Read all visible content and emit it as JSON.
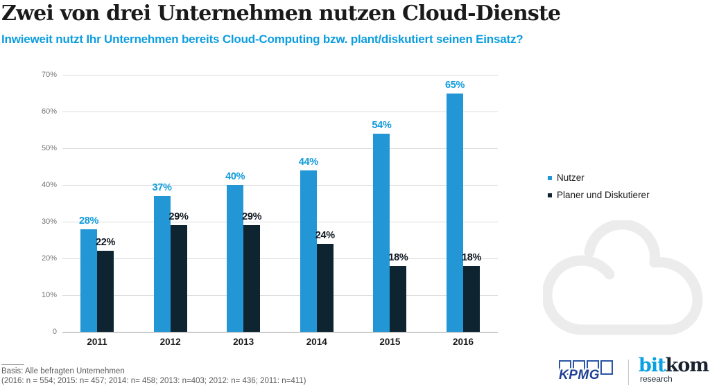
{
  "header": {
    "title": "Zwei von drei Unternehmen nutzen Cloud-Dienste",
    "subtitle": "Inwieweit nutzt Ihr Unternehmen bereits Cloud-Computing bzw. plant/diskutiert seinen Einsatz?"
  },
  "chart_data": {
    "type": "bar",
    "categories": [
      "2011",
      "2012",
      "2013",
      "2014",
      "2015",
      "2016"
    ],
    "series": [
      {
        "name": "Nutzer",
        "color": "#2397d6",
        "label_color": "#0f9bdb",
        "values": [
          28,
          37,
          40,
          44,
          54,
          65
        ]
      },
      {
        "name": "Planer und Diskutierer",
        "color": "#0e2430",
        "label_color": "#101820",
        "values": [
          22,
          29,
          29,
          24,
          18,
          18
        ]
      }
    ],
    "value_suffix": "%",
    "ylim": [
      0,
      70
    ],
    "yticks": [
      0,
      10,
      20,
      30,
      40,
      50,
      60,
      70
    ],
    "ytick_labels": [
      "0",
      "10%",
      "20%",
      "30%",
      "40%",
      "50%",
      "60%",
      "70%"
    ],
    "grid": true,
    "legend_position": "right",
    "xlabel": "",
    "ylabel": ""
  },
  "footer": {
    "basis_line1": "Basis: Alle befragten Unternehmen",
    "basis_line2": "(2016: n = 554; 2015: n= 457; 2014: n= 458; 2013: n=403; 2012: n= 436; 2011: n=411)"
  },
  "branding": {
    "kpmg_wordmark": "KPMG",
    "bitkom_part1": "bit",
    "bitkom_part2": "kom",
    "bitkom_sub": "research"
  },
  "icons": {
    "cloud_watermark": "cloud-outline-icon"
  },
  "colors": {
    "title_text": "#1a1a1a",
    "subtitle_blue": "#0c9de0",
    "bar_blue": "#2397d6",
    "bar_dark": "#0e2430",
    "gridline": "#dcdcdc",
    "axis_line": "#9b9b9b",
    "cloud_watermark": "#ececec",
    "kpmg_blue": "#1e3f94",
    "bitkom_blue": "#0aa1e2",
    "bitkom_dark": "#19222e"
  }
}
